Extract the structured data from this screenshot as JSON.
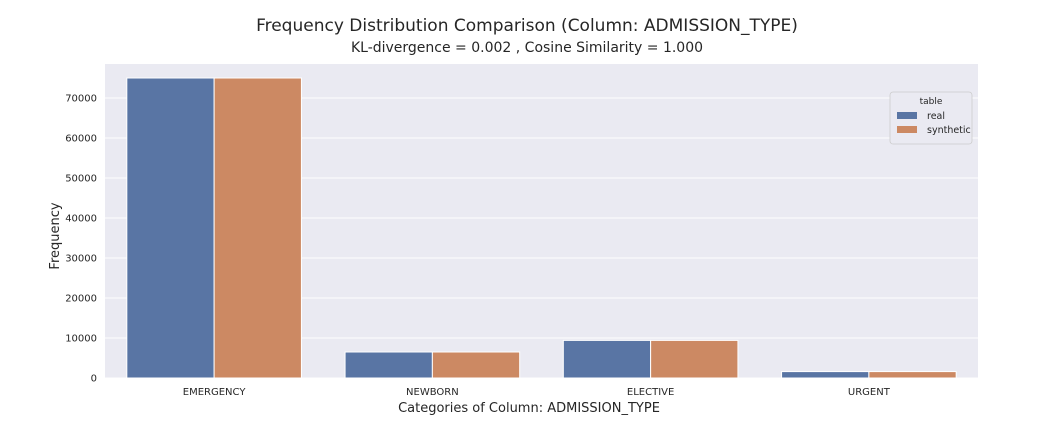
{
  "chart_data": {
    "type": "bar",
    "title": "Frequency Distribution Comparison (Column: ADMISSION_TYPE)",
    "subtitle": "KL-divergence = 0.002 , Cosine Similarity = 1.000",
    "xlabel": "Categories of Column: ADMISSION_TYPE",
    "ylabel": "Frequency",
    "categories": [
      "EMERGENCY",
      "NEWBORN",
      "ELECTIVE",
      "URGENT"
    ],
    "series": [
      {
        "name": "real",
        "color": "#5975a4",
        "values": [
          75000,
          6500,
          9400,
          1600
        ]
      },
      {
        "name": "synthetic",
        "color": "#cc8963",
        "values": [
          75000,
          6500,
          9400,
          1600
        ]
      }
    ],
    "ylim": [
      0,
      78500
    ],
    "yticks": [
      0,
      10000,
      20000,
      30000,
      40000,
      50000,
      60000,
      70000
    ],
    "grid": true,
    "legend": {
      "title": "table",
      "position": "top-right"
    },
    "colors": {
      "plot_background": "#eaeaf2",
      "grid": "#ffffff"
    }
  }
}
